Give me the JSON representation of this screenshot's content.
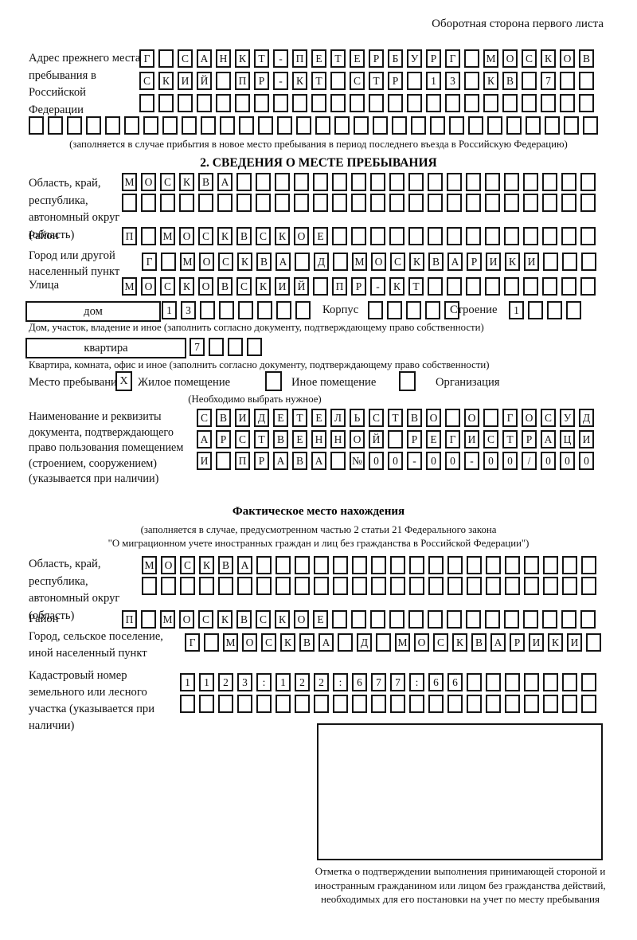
{
  "page": {
    "back_note": "Оборотная сторона первого листа"
  },
  "prev_address": {
    "label": "Адрес прежнего места пребывания в Российской Федерации",
    "rows": [
      {
        "value": "Г САНКТ-ПЕТЕРБУРГ МОСКОВ",
        "len": 24
      },
      {
        "value": "СКИЙ ПР-КТ СТР 13 КВ 7",
        "len": 24
      },
      {
        "value": "",
        "len": 24
      },
      {
        "value": "",
        "len": 30
      }
    ],
    "note": "(заполняется в случае прибытия в новое место пребывания в период последнего въезда в Российскую Федерацию)"
  },
  "section2": {
    "title": "2. СВЕДЕНИЯ О МЕСТЕ ПРЕБЫВАНИЯ",
    "region": {
      "label": "Область, край, республика, автономный округ (область)",
      "rows": [
        {
          "value": "МОСКВА",
          "len": 25
        },
        {
          "value": "",
          "len": 25
        }
      ]
    },
    "district": {
      "label": "Район",
      "row": {
        "value": "П МОСКВСКОЕ",
        "len": 25
      }
    },
    "city": {
      "label": "Город или другой населенный пункт",
      "row": {
        "value": "Г МОСКВА Д МОСКВАРИКИ",
        "len": 24
      }
    },
    "street": {
      "label": "Улица",
      "row": {
        "value": "МОСКОВСКИЙ ПР-КТ",
        "len": 25
      }
    },
    "house": {
      "box_label": "дом",
      "row": {
        "value": "13",
        "len": 8
      },
      "korpus_label": "Корпус",
      "korpus_row": {
        "value": "",
        "len": 5
      },
      "stroenie_label": "Строение",
      "stroenie_row": {
        "value": "1",
        "len": 4
      },
      "note": "Дом, участок, владение и иное (заполнить согласно документу, подтверждающему право собственности)"
    },
    "apartment": {
      "box_label": "квартира",
      "row": {
        "value": "7",
        "len": 4
      },
      "note": "Квартира, комната, офис и иное (заполнить согласно документу, подтверждающему право собственности)"
    },
    "stay_type": {
      "label": "Место пребывания:",
      "options": [
        {
          "label": "Жилое помещение",
          "checked": "X"
        },
        {
          "label": "Иное помещение",
          "checked": ""
        },
        {
          "label": "Организация",
          "checked": ""
        }
      ],
      "note": "(Необходимо выбрать нужное)"
    },
    "document": {
      "label": "Наименование и реквизиты документа, подтверждающего право пользования помещением (строением, сооружением) (указывается при наличии)",
      "rows": [
        {
          "value": "СВИДЕТЕЛЬСТВО О ГОСУД",
          "len": 21
        },
        {
          "value": "АРСТВЕННОЙ РЕГИСТРАЦИ",
          "len": 21
        },
        {
          "value": "И ПРАВА №00-00-00/000",
          "len": 21
        }
      ]
    }
  },
  "actual_location": {
    "title": "Фактическое место нахождения",
    "note1": "(заполняется в случае, предусмотренном частью 2 статьи 21 Федерального закона",
    "note2": "\"О миграционном учете иностранных граждан и лиц без гражданства в Российской Федерации\")",
    "region": {
      "label": "Область, край, республика, автономный округ (область)",
      "rows": [
        {
          "value": "МОСКВА",
          "len": 24
        },
        {
          "value": "",
          "len": 24
        }
      ]
    },
    "district": {
      "label": "Район",
      "row": {
        "value": "П МОСКВСКОЕ",
        "len": 25
      }
    },
    "city": {
      "label": "Город, сельское поселение, иной населенный пункт",
      "row": {
        "value": "Г МОСКВА Д МОСКВАРИКИ",
        "len": 22
      }
    },
    "cadastral": {
      "label": "Кадастровый номер земельного или лесного участка (указывается при наличии)",
      "rows": [
        {
          "value": "1123:122:677:66",
          "len": 22
        },
        {
          "value": "",
          "len": 22
        }
      ]
    },
    "stamp_note": "Отметка о подтверждении выполнения принимающей стороной и иностранным гражданином или лицом без гражданства действий, необходимых для его постановки на учет по месту пребывания"
  }
}
